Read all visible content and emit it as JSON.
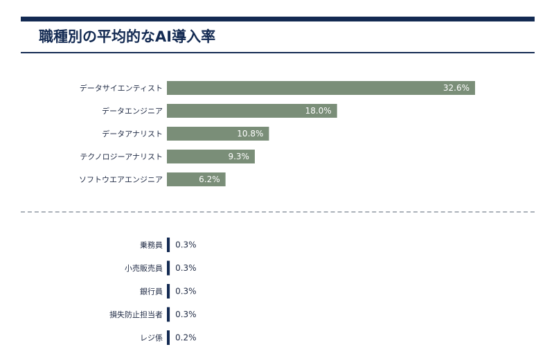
{
  "title": "職種別の平均的なAI導入率",
  "colors": {
    "accent": "#132a52",
    "bar_top": "#7a8e78",
    "bar_bottom": "#132a52",
    "divider": "#aab0b8"
  },
  "chart_data": [
    {
      "type": "bar",
      "orientation": "horizontal",
      "categories": [
        "データサイエンティスト",
        "データエンジニア",
        "データアナリスト",
        "テクノロジーアナリスト",
        "ソフトウエアエンジニア"
      ],
      "values": [
        32.6,
        18.0,
        10.8,
        9.3,
        6.2
      ],
      "value_labels": [
        "32.6%",
        "18.0%",
        "10.8%",
        "9.3%",
        "6.2%"
      ],
      "xlim": [
        0,
        34
      ],
      "grid": false,
      "color": "#7a8e78"
    },
    {
      "type": "bar",
      "orientation": "horizontal",
      "categories": [
        "乗務員",
        "小売販売員",
        "銀行員",
        "損失防止担当者",
        "レジ係"
      ],
      "values": [
        0.3,
        0.3,
        0.3,
        0.3,
        0.2
      ],
      "value_labels": [
        "0.3%",
        "0.3%",
        "0.3%",
        "0.3%",
        "0.2%"
      ],
      "xlim": [
        0,
        34
      ],
      "grid": false,
      "color": "#132a52"
    }
  ]
}
